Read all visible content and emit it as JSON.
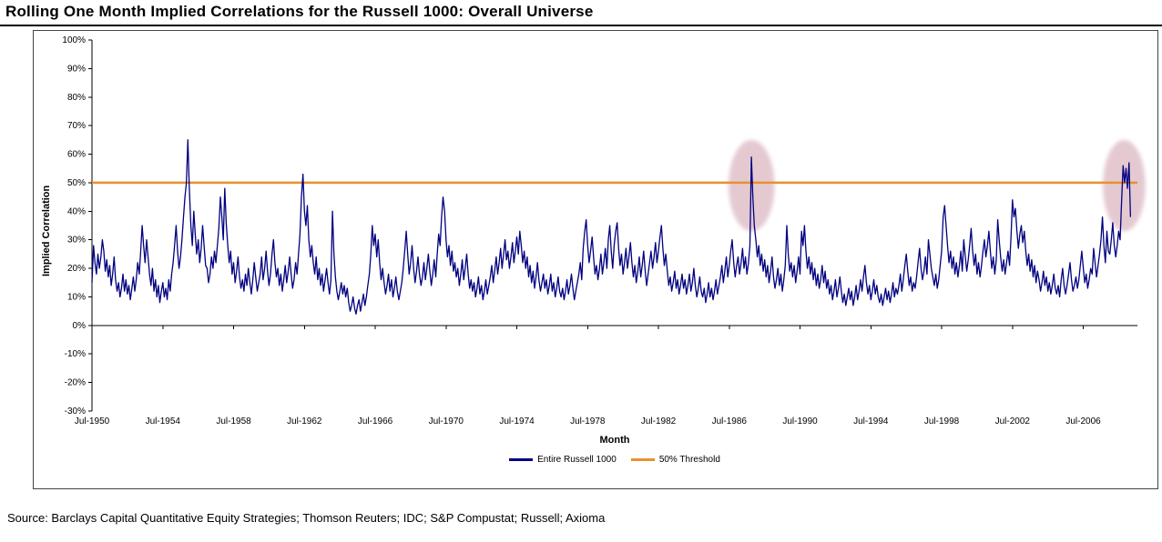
{
  "title": "Rolling One Month Implied Correlations for the Russell 1000: Overall Universe",
  "source": "Source: Barclays Capital Quantitative Equity Strategies; Thomson Reuters; IDC; S&P Compustat; Russell; Axioma",
  "chart_data": {
    "type": "line",
    "title": "Rolling One Month Implied Correlations for the Russell 1000: Overall Universe",
    "xlabel": "Month",
    "ylabel": "Implied Correlation",
    "ylim": [
      -30,
      100
    ],
    "y_unit": "%",
    "grid": "off",
    "legend_position": "bottom-center",
    "y_ticks": [
      100,
      90,
      80,
      70,
      60,
      50,
      40,
      30,
      20,
      10,
      0,
      -10,
      -20,
      -30
    ],
    "x_ticks": [
      "Jul-1950",
      "Jul-1954",
      "Jul-1958",
      "Jul-1962",
      "Jul-1966",
      "Jul-1970",
      "Jul-1974",
      "Jul-1978",
      "Jul-1982",
      "Jul-1986",
      "Jul-1990",
      "Jul-1994",
      "Jul-1998",
      "Jul-2002",
      "Jul-2006"
    ],
    "series": [
      {
        "name": "Entire Russell 1000",
        "color": "#000080",
        "unit": "%",
        "start": {
          "year": 1950,
          "month": 7
        },
        "monthly_values_by_year": {
          "1950": [
            15,
            28,
            22,
            18,
            25,
            20
          ],
          "1951": [
            24,
            30,
            26,
            19,
            23,
            17,
            21,
            14,
            18,
            24,
            16,
            12
          ],
          "1952": [
            15,
            10,
            13,
            18,
            12,
            16,
            11,
            14,
            9,
            13,
            17,
            12
          ],
          "1953": [
            16,
            22,
            18,
            26,
            35,
            28,
            22,
            30,
            24,
            18,
            14,
            20
          ],
          "1954": [
            12,
            16,
            10,
            14,
            8,
            12,
            15,
            10,
            13,
            9,
            16,
            12
          ],
          "1955": [
            18,
            22,
            28,
            35,
            26,
            20,
            24,
            30,
            38,
            45,
            50,
            65
          ],
          "1956": [
            48,
            35,
            28,
            40,
            32,
            25,
            30,
            22,
            27,
            35,
            28,
            21
          ],
          "1957": [
            20,
            15,
            18,
            24,
            20,
            26,
            22,
            28,
            34,
            45,
            38,
            30
          ],
          "1958": [
            48,
            36,
            28,
            22,
            26,
            18,
            22,
            15,
            19,
            24,
            17,
            13
          ],
          "1959": [
            16,
            12,
            18,
            14,
            20,
            15,
            11,
            16,
            22,
            17,
            12,
            15
          ],
          "1960": [
            18,
            24,
            16,
            20,
            26,
            19,
            14,
            18,
            25,
            30,
            22,
            17
          ],
          "1961": [
            20,
            14,
            18,
            12,
            16,
            21,
            15,
            19,
            24,
            18,
            13,
            16
          ],
          "1962": [
            22,
            18,
            25,
            32,
            45,
            53,
            40,
            35,
            42,
            30,
            24,
            28
          ],
          "1963": [
            22,
            18,
            24,
            16,
            20,
            14,
            18,
            12,
            16,
            20,
            15,
            11
          ],
          "1964": [
            16,
            40,
            25,
            17,
            12,
            9,
            12,
            15,
            11,
            14,
            10,
            13
          ],
          "1965": [
            8,
            5,
            7,
            10,
            6,
            4,
            7,
            9,
            5,
            8,
            11,
            7
          ],
          "1966": [
            10,
            14,
            18,
            25,
            35,
            28,
            32,
            24,
            30,
            22,
            16,
            20
          ],
          "1967": [
            15,
            11,
            14,
            18,
            12,
            16,
            10,
            13,
            17,
            12,
            9,
            12
          ],
          "1968": [
            15,
            20,
            26,
            33,
            25,
            18,
            22,
            28,
            20,
            15,
            19,
            24
          ],
          "1969": [
            18,
            14,
            17,
            22,
            16,
            20,
            25,
            19,
            14,
            18,
            23,
            17
          ],
          "1970": [
            25,
            32,
            28,
            38,
            45,
            40,
            30,
            24,
            28,
            21,
            26,
            19
          ],
          "1971": [
            22,
            17,
            20,
            14,
            18,
            23,
            16,
            20,
            25,
            18,
            13,
            16
          ],
          "1972": [
            12,
            15,
            10,
            13,
            17,
            11,
            14,
            9,
            12,
            16,
            11,
            14
          ],
          "1973": [
            17,
            21,
            15,
            19,
            24,
            18,
            22,
            27,
            20,
            25,
            30,
            23
          ],
          "1974": [
            26,
            20,
            24,
            29,
            22,
            26,
            31,
            25,
            33,
            28,
            22,
            26
          ],
          "1975": [
            20,
            24,
            17,
            21,
            15,
            19,
            13,
            17,
            22,
            16,
            12,
            15
          ],
          "1976": [
            18,
            13,
            16,
            11,
            14,
            18,
            12,
            15,
            10,
            13,
            17,
            12
          ],
          "1977": [
            10,
            13,
            9,
            12,
            16,
            11,
            14,
            18,
            13,
            9,
            12,
            15
          ],
          "1978": [
            18,
            22,
            16,
            27,
            33,
            37,
            28,
            22,
            26,
            31,
            24,
            18
          ],
          "1979": [
            21,
            16,
            20,
            25,
            18,
            22,
            27,
            20,
            30,
            35,
            26,
            20
          ],
          "1980": [
            28,
            33,
            36,
            27,
            21,
            25,
            18,
            22,
            27,
            20,
            24,
            29
          ],
          "1981": [
            22,
            17,
            21,
            15,
            19,
            24,
            17,
            21,
            26,
            19,
            14,
            18
          ],
          "1982": [
            22,
            26,
            20,
            24,
            29,
            22,
            26,
            31,
            35,
            27,
            21,
            25
          ],
          "1983": [
            19,
            14,
            17,
            12,
            15,
            19,
            13,
            16,
            11,
            14,
            18,
            13
          ],
          "1984": [
            16,
            11,
            14,
            18,
            12,
            15,
            20,
            14,
            10,
            13,
            17,
            12
          ],
          "1985": [
            10,
            13,
            8,
            11,
            15,
            10,
            13,
            9,
            12,
            16,
            11,
            14
          ],
          "1986": [
            17,
            21,
            15,
            19,
            24,
            17,
            21,
            26,
            30,
            22,
            17,
            21
          ],
          "1987": [
            24,
            18,
            22,
            27,
            20,
            24,
            18,
            22,
            28,
            59,
            45,
            35
          ],
          "1988": [
            30,
            24,
            28,
            21,
            25,
            19,
            23,
            17,
            21,
            15,
            19,
            24
          ],
          "1989": [
            17,
            13,
            16,
            20,
            14,
            18,
            12,
            16,
            21,
            35,
            25,
            19
          ],
          "1990": [
            22,
            17,
            21,
            15,
            19,
            24,
            18,
            33,
            28,
            35,
            26,
            20
          ],
          "1991": [
            24,
            18,
            22,
            16,
            20,
            14,
            18,
            13,
            16,
            21,
            15,
            19
          ],
          "1992": [
            13,
            16,
            11,
            14,
            9,
            12,
            16,
            10,
            13,
            17,
            12,
            8
          ],
          "1993": [
            11,
            7,
            10,
            13,
            9,
            12,
            7,
            10,
            14,
            9,
            12,
            16
          ],
          "1994": [
            12,
            17,
            21,
            15,
            11,
            14,
            9,
            12,
            16,
            11,
            14,
            10
          ],
          "1995": [
            8,
            11,
            7,
            10,
            13,
            9,
            12,
            8,
            11,
            15,
            10,
            13
          ],
          "1996": [
            11,
            14,
            18,
            12,
            16,
            21,
            25,
            19,
            14,
            17,
            12,
            15
          ],
          "1997": [
            13,
            17,
            22,
            27,
            20,
            16,
            19,
            24,
            18,
            30,
            25,
            20
          ],
          "1998": [
            17,
            14,
            18,
            13,
            16,
            21,
            26,
            38,
            42,
            35,
            28,
            22
          ],
          "1999": [
            26,
            20,
            24,
            18,
            22,
            17,
            21,
            26,
            19,
            30,
            24,
            19
          ],
          "2000": [
            23,
            28,
            34,
            26,
            21,
            25,
            18,
            22,
            17,
            21,
            26,
            30
          ],
          "2001": [
            24,
            28,
            33,
            26,
            20,
            24,
            18,
            23,
            37,
            30,
            24,
            19
          ],
          "2002": [
            23,
            18,
            22,
            26,
            21,
            31,
            44,
            38,
            41,
            33,
            27,
            32
          ],
          "2003": [
            35,
            29,
            33,
            26,
            21,
            25,
            19,
            23,
            17,
            21,
            15,
            19
          ],
          "2004": [
            16,
            12,
            15,
            19,
            14,
            17,
            12,
            15,
            11,
            14,
            18,
            13
          ],
          "2005": [
            11,
            14,
            10,
            16,
            20,
            14,
            11,
            14,
            18,
            22,
            16,
            12
          ],
          "2006": [
            14,
            17,
            13,
            16,
            21,
            26,
            20,
            15,
            18,
            13,
            16,
            20
          ],
          "2007": [
            18,
            27,
            22,
            17,
            21,
            25,
            30,
            38,
            28,
            22,
            33,
            26
          ],
          "2008": [
            25,
            30,
            36,
            28,
            24,
            28,
            33,
            30,
            44,
            56,
            50,
            55
          ],
          "2009": [
            48,
            57,
            38
          ]
        }
      },
      {
        "name": "50% Threshold",
        "color": "#E8912D",
        "value": 50
      }
    ],
    "annotations": {
      "highlight_color": "#C4889B",
      "highlight_opacity": 0.45,
      "highlight_ellipses": [
        {
          "t": 1987.8,
          "v": 49,
          "rt": 1.3,
          "rv": 16
        },
        {
          "t": 2008.85,
          "v": 49,
          "rt": 1.2,
          "rv": 16
        }
      ]
    }
  },
  "legend": {
    "items": [
      {
        "label": "Entire Russell 1000",
        "color": "#000080"
      },
      {
        "label": "50% Threshold",
        "color": "#E8912D"
      }
    ]
  }
}
